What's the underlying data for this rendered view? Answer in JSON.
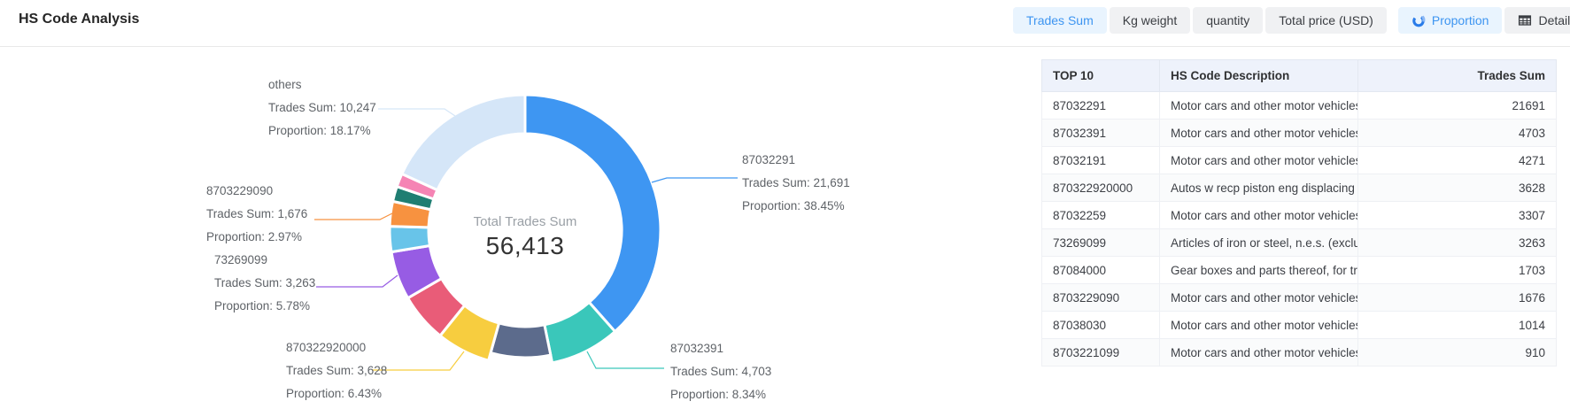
{
  "header": {
    "title": "HS Code Analysis",
    "metric_tabs": [
      {
        "label": "Trades Sum",
        "active": true
      },
      {
        "label": "Kg weight",
        "active": false
      },
      {
        "label": "quantity",
        "active": false
      },
      {
        "label": "Total price (USD)",
        "active": false
      }
    ],
    "view_tabs": [
      {
        "label": "Proportion",
        "icon": "donut-chart-icon",
        "active": true
      },
      {
        "label": "Detail",
        "icon": "table-icon",
        "active": false
      }
    ]
  },
  "colors": {
    "active_tab_text": "#3d95f1",
    "active_tab_bg": "#e9f4fe",
    "tab_bg": "#f0f1f3",
    "table_header_bg": "#eef2fb"
  },
  "chart_data": {
    "type": "pie",
    "subtype": "donut",
    "center_label": "Total Trades Sum",
    "center_value": "56,413",
    "total": 56413,
    "legend_position": "none",
    "series": [
      {
        "name": "87032291",
        "value": 21691,
        "proportion": 38.45,
        "color": "#3e96f2"
      },
      {
        "name": "87032391",
        "value": 4703,
        "proportion": 8.34,
        "color": "#3ac7ba"
      },
      {
        "name": "87032191",
        "value": 4271,
        "proportion": 7.57,
        "color": "#5c6b8c",
        "inset": true
      },
      {
        "name": "870322920000",
        "value": 3628,
        "proportion": 6.43,
        "color": "#f7cd3f"
      },
      {
        "name": "87032259",
        "value": 3307,
        "proportion": 5.86,
        "color": "#e95c78"
      },
      {
        "name": "73269099",
        "value": 3263,
        "proportion": 5.78,
        "color": "#975ce4"
      },
      {
        "name": "87084000",
        "value": 1703,
        "proportion": 3.02,
        "color": "#68c4e9"
      },
      {
        "name": "8703229090",
        "value": 1676,
        "proportion": 2.97,
        "color": "#f79240"
      },
      {
        "name": "87038030",
        "value": 1014,
        "proportion": 1.8,
        "color": "#1f7e72"
      },
      {
        "name": "8703221099",
        "value": 910,
        "proportion": 1.61,
        "color": "#f584b4"
      },
      {
        "name": "others",
        "value": 10247,
        "proportion": 18.17,
        "color": "#d5e6f8"
      }
    ],
    "callouts": [
      {
        "slice": "others",
        "line1": "others",
        "line2": "Trades Sum: 10,247",
        "line3": "Proportion: 18.17%"
      },
      {
        "slice": "8703229090",
        "line1": "8703229090",
        "line2": "Trades Sum: 1,676",
        "line3": "Proportion: 2.97%"
      },
      {
        "slice": "73269099",
        "line1": "73269099",
        "line2": "Trades Sum: 3,263",
        "line3": "Proportion: 5.78%"
      },
      {
        "slice": "870322920000",
        "line1": "870322920000",
        "line2": "Trades Sum: 3,628",
        "line3": "Proportion: 6.43%"
      },
      {
        "slice": "87032291",
        "line1": "87032291",
        "line2": "Trades Sum: 21,691",
        "line3": "Proportion: 38.45%"
      },
      {
        "slice": "87032391",
        "line1": "87032391",
        "line2": "Trades Sum: 4,703",
        "line3": "Proportion: 8.34%"
      }
    ]
  },
  "table": {
    "columns": [
      "TOP 10",
      "HS Code Description",
      "Trades Sum"
    ],
    "rows": [
      {
        "code": "87032291",
        "description": "Motor cars and other motor vehicles p...",
        "trades_sum": "21691"
      },
      {
        "code": "87032391",
        "description": "Motor cars and other motor vehicles p...",
        "trades_sum": "4703"
      },
      {
        "code": "87032191",
        "description": "Motor cars and other motor vehicles p...",
        "trades_sum": "4271"
      },
      {
        "code": "870322920000",
        "description": "Autos w recp piston eng displacing > ...",
        "trades_sum": "3628"
      },
      {
        "code": "87032259",
        "description": "Motor cars and other motor vehicles p...",
        "trades_sum": "3307"
      },
      {
        "code": "73269099",
        "description": "Articles of iron or steel, n.e.s. (excludi...",
        "trades_sum": "3263"
      },
      {
        "code": "87084000",
        "description": "Gear boxes and parts thereof, for tract...",
        "trades_sum": "1703"
      },
      {
        "code": "8703229090",
        "description": "Motor cars and other motor vehicles p...",
        "trades_sum": "1676"
      },
      {
        "code": "87038030",
        "description": "Motor cars and other motor vehicles p...",
        "trades_sum": "1014"
      },
      {
        "code": "8703221099",
        "description": "Motor cars and other motor vehicles p...",
        "trades_sum": "910"
      }
    ]
  }
}
